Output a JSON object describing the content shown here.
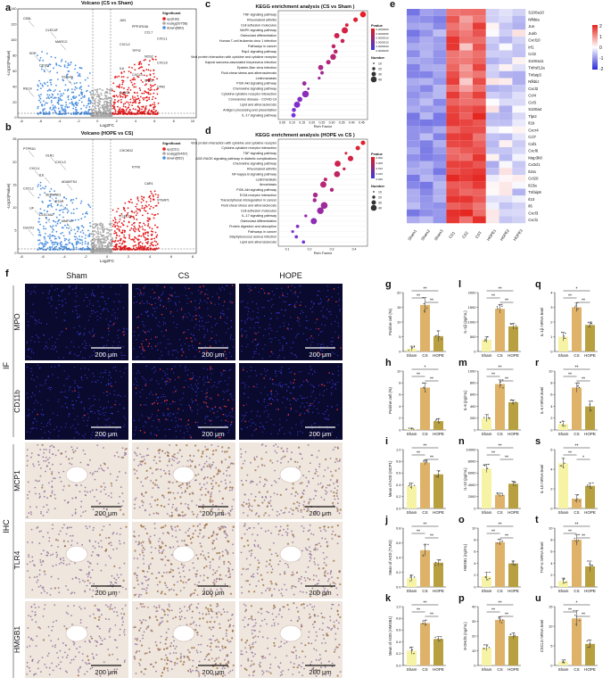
{
  "panel_letters": [
    "a",
    "b",
    "c",
    "d",
    "e",
    "f",
    "g",
    "h",
    "i",
    "j",
    "k",
    "l",
    "m",
    "n",
    "o",
    "p",
    "q",
    "r",
    "s",
    "t",
    "u"
  ],
  "volcano": [
    {
      "title": "Volcano (CS vs Sham)",
      "legend_title": "Significant",
      "legend": [
        "up(918)",
        "nosig(20756)",
        "down(580)"
      ],
      "xlabel": "Log2FC",
      "ylabel": "-Log10(Pvalue)",
      "xticks": [
        "-8",
        "-6",
        "-4",
        "-2",
        "0",
        "2",
        "4",
        "6",
        "8",
        "10"
      ],
      "yticks": [
        "0",
        "20",
        "40",
        "60",
        "80",
        "100",
        "120",
        "140"
      ],
      "gene_labels_left": [
        "CD5L",
        "CLEC4F",
        "MARCO",
        "KDR",
        "CD163",
        "VSIG4A",
        "RELN"
      ],
      "gene_labels_right": [
        "JUN",
        "PPP1R15A",
        "CCL7",
        "CXCL1",
        "CXCL2",
        "TFPI2",
        "NOS2",
        "CXCL6",
        "IL6",
        "CXCL3",
        "SAA2",
        "CPA2",
        "Prss33"
      ]
    },
    {
      "title": "Volcano (HOPE vs CS)",
      "legend_title": "Significant",
      "legend": [
        "up(231)",
        "nosig(20457)",
        "down(552)"
      ],
      "xlabel": "Log2FC",
      "ylabel": "-Log10(Pvalue)",
      "xticks": [
        "-8",
        "-6",
        "-4",
        "-2",
        "0",
        "2",
        "4",
        "6",
        "8"
      ],
      "yticks": [
        "0",
        "5",
        "10",
        "15",
        "20",
        "25"
      ],
      "gene_labels_left": [
        "PTPRA1",
        "OLR1",
        "CXCL3",
        "CXCL1",
        "IL6",
        "ADAMTS4",
        "CXCL2",
        "SERPINE1",
        "STAR",
        "LIF",
        "CLEC4A2",
        "MMP10",
        "DUOX2"
      ],
      "gene_labels_right": [
        "CHCHD2",
        "KTF8",
        "CAR1",
        "STEAP1",
        "CLEC2L"
      ]
    }
  ],
  "kegg": [
    {
      "title": "KEGG enrichment analysis (CS vs Sham )",
      "xlabel": "Rich Factor",
      "xticks": [
        "0.05",
        "0.10",
        "0.15",
        "0.20",
        "0.25",
        "0.30",
        "0.35",
        "0.40",
        "0.45"
      ],
      "pvalue_title": "Pvalue",
      "pvalue_ticks": [
        "0.0000000",
        "0.0000005",
        "0.0000010",
        "0.0000015",
        "0.0000020",
        "0.0000025"
      ],
      "number_title": "Number",
      "number_ticks": [
        "10",
        "20",
        "30",
        "40"
      ],
      "pathways": [
        "TNF signaling pathway",
        "Rheumatoid arthritis",
        "Cell adhesion molecules",
        "MAPK signaling pathway",
        "Osteoclast differentiation",
        "Human T-cell leukemia virus 1 infection",
        "Pathways in cancer",
        "Rap1 signaling pathway",
        "Viral protein interaction with cytokine and cytokine receptor",
        "Kaposi sarcoma-associated herpesvirus infection",
        "Epstein-Barr virus infection",
        "Fluid shear stress and atherosclerosis",
        "Leishmaniasis",
        "PI3K-Akt signaling pathway",
        "Chemokine signaling pathway",
        "Cytokine-cytokine receptor interaction",
        "Coronavirus disease - COVID-19",
        "Lipid and atherosclerosis",
        "Antigen processing and presentation",
        "IL-17 signaling pathway"
      ]
    },
    {
      "title": "KEGG enrichment analysis (HOPE vs CS )",
      "xlabel": "Rich Factor",
      "xticks": [
        "0.1",
        "0.2",
        "0.3",
        "0.4"
      ],
      "pvalue_title": "Pvalue",
      "pvalue_ticks": [
        "0.000",
        "0.005",
        "0.010",
        "0.015",
        "0.020"
      ],
      "number_title": "Number",
      "number_ticks": [
        "10",
        "20",
        "30",
        "40"
      ],
      "pathways": [
        "Viral protein interaction with cytokine and cytokine receptor",
        "Cytokine-cytokine receptor interaction",
        "TNF signaling pathway",
        "AGE-RAGE signaling pathway in diabetic complications",
        "Chemokine signaling pathway",
        "Rheumatoid arthritis",
        "NF-kappa B signaling pathway",
        "Leishmaniasis",
        "Amoebiasis",
        "PI3K-Akt signaling pathway",
        "ECM-receptor interaction",
        "Transcriptional misregulation in cancer",
        "Fluid shear stress and atherosclerosis",
        "Cell adhesion molecules",
        "IL-17 signaling pathway",
        "Osteoclast differentiation",
        "Protein digestion and absorption",
        "Pathways in cancer",
        "Staphylococcus aureus infection",
        "Lipid and atherosclerosis"
      ]
    }
  ],
  "heatmap": {
    "genes": [
      "S100a10",
      "Nfkbia",
      "Jun",
      "Junb",
      "Cxcl10",
      "Irf1",
      "Ccl2",
      "S100a11",
      "Tnfrsf12a",
      "Tnfaip3",
      "Nfkbiz",
      "Cxcl2",
      "Ccl4",
      "Ccl3",
      "S100a4",
      "Tlpi2",
      "Il1b",
      "Cxcr4",
      "Ccl7",
      "Caf1",
      "Cxcl6",
      "Map3k8",
      "Cx3cl1",
      "Il2ra",
      "Ccl20",
      "Il23a",
      "Tnfaip6",
      "Il10",
      "Il6",
      "Cxcl3",
      "Cxcl1"
    ],
    "samples": [
      "Sham1",
      "Sham2",
      "Sham3",
      "CS1",
      "CS2",
      "CS3",
      "HOPE1",
      "HOPE2",
      "HOPE3"
    ],
    "scale_ticks": [
      "2",
      "1",
      "0",
      "-1",
      "-2"
    ]
  },
  "micrograph": {
    "columns": [
      "Sham",
      "CS",
      "HOPE"
    ],
    "if_label": "IF",
    "ihc_label": "IHC",
    "rows": [
      "MPO",
      "CD11b",
      "MCP1",
      "TLR4",
      "HMGB1"
    ],
    "scale_bar": "200 μm"
  },
  "sig_mark": "**",
  "sig_mark_single": "*",
  "bar_charts": [
    {
      "letter": "g",
      "ylabel": "Positive cell (%)",
      "yticks": [
        "0",
        "5",
        "10",
        "15",
        "20"
      ],
      "categories": [
        "Sham",
        "CS",
        "HOPE"
      ],
      "values": [
        1.0,
        15.8,
        5.2
      ],
      "errors": [
        0.8,
        2.5,
        1.8
      ],
      "ymax": 20,
      "sig": [
        "**",
        "**",
        "**"
      ]
    },
    {
      "letter": "h",
      "ylabel": "Positive cell (%)",
      "yticks": [
        "0",
        "2",
        "4",
        "6",
        "8",
        "10"
      ],
      "categories": [
        "Sham",
        "CS",
        "HOPE"
      ],
      "values": [
        0.2,
        7.2,
        1.5
      ],
      "errors": [
        0.1,
        0.8,
        0.4
      ],
      "ymax": 10,
      "sig": [
        "**",
        "*",
        "**"
      ]
    },
    {
      "letter": "i",
      "ylabel": "Mean of AOD (MCP1)",
      "yticks": [
        "0.0",
        "0.2",
        "0.4",
        "0.6",
        "0.8",
        "1.0"
      ],
      "categories": [
        "Sham",
        "CS",
        "HOPE"
      ],
      "values": [
        0.38,
        0.78,
        0.58
      ],
      "errors": [
        0.05,
        0.04,
        0.06
      ],
      "ymax": 1.0,
      "sig": [
        "**",
        "**",
        "**"
      ]
    },
    {
      "letter": "j",
      "ylabel": "Mean of AOD (TLR4)",
      "yticks": [
        "0.0",
        "0.2",
        "0.4",
        "0.6",
        "0.8"
      ],
      "categories": [
        "Sham",
        "CS",
        "HOPE"
      ],
      "values": [
        0.12,
        0.5,
        0.33
      ],
      "errors": [
        0.04,
        0.08,
        0.04
      ],
      "ymax": 0.8,
      "sig": [
        "**",
        "**",
        "**"
      ]
    },
    {
      "letter": "k",
      "ylabel": "Mean of AOD (HMGB1)",
      "yticks": [
        "0.0",
        "0.2",
        "0.4",
        "0.6",
        "0.8",
        "1.0"
      ],
      "categories": [
        "Sham",
        "CS",
        "HOPE"
      ],
      "values": [
        0.25,
        0.72,
        0.45
      ],
      "errors": [
        0.06,
        0.05,
        0.04
      ],
      "ymax": 1.0,
      "sig": [
        "**",
        "**",
        "**"
      ]
    },
    {
      "letter": "l",
      "ylabel": "IL-1β (pg/mL)",
      "yticks": [
        "0",
        "500",
        "1000",
        "1500",
        "2000"
      ],
      "categories": [
        "Sham",
        "CS",
        "HOPE"
      ],
      "values": [
        400,
        1450,
        850
      ],
      "errors": [
        100,
        150,
        100
      ],
      "ymax": 2000,
      "sig": [
        "**",
        "**",
        "**"
      ]
    },
    {
      "letter": "m",
      "ylabel": "IL-6 (pg/mL)",
      "yticks": [
        "0",
        "200",
        "400",
        "600",
        "800",
        "1000"
      ],
      "categories": [
        "Sham",
        "CS",
        "HOPE"
      ],
      "values": [
        200,
        780,
        470
      ],
      "errors": [
        60,
        70,
        40
      ],
      "ymax": 1000,
      "sig": [
        "**",
        "**",
        "**"
      ]
    },
    {
      "letter": "n",
      "ylabel": "IL-10 (pg/mL)",
      "yticks": [
        "0",
        "2000",
        "4000",
        "6000",
        "8000",
        "10000"
      ],
      "categories": [
        "Sham",
        "CS",
        "HOPE"
      ],
      "values": [
        6800,
        2300,
        4200
      ],
      "errors": [
        700,
        300,
        400
      ],
      "ymax": 10000,
      "sig": [
        "**",
        "**",
        "**"
      ]
    },
    {
      "letter": "o",
      "ylabel": "HMGB1 (ng/mL)",
      "yticks": [
        "0",
        "2",
        "4",
        "6",
        "8",
        "10"
      ],
      "categories": [
        "Sham",
        "CS",
        "HOPE"
      ],
      "values": [
        1.8,
        7.6,
        4.0
      ],
      "errors": [
        0.7,
        0.5,
        0.4
      ],
      "ymax": 10,
      "sig": [
        "**",
        "**",
        "**"
      ]
    },
    {
      "letter": "p",
      "ylabel": "8-OHdG (ng/mL)",
      "yticks": [
        "0",
        "10",
        "20",
        "30",
        "40"
      ],
      "categories": [
        "Sham",
        "CS",
        "HOPE"
      ],
      "values": [
        12,
        31,
        20
      ],
      "errors": [
        2,
        2,
        2
      ],
      "ymax": 40,
      "sig": [
        "**",
        "**",
        "**"
      ]
    },
    {
      "letter": "q",
      "ylabel": "IL-1β mRNA level",
      "yticks": [
        "0",
        "1",
        "2",
        "3",
        "4"
      ],
      "categories": [
        "Sham",
        "CS",
        "HOPE"
      ],
      "values": [
        1.0,
        3.0,
        1.8
      ],
      "errors": [
        0.3,
        0.3,
        0.2
      ],
      "ymax": 4,
      "sig": [
        "**",
        "*",
        "**"
      ]
    },
    {
      "letter": "r",
      "ylabel": "IL-6 mRNA level",
      "yticks": [
        "0",
        "2",
        "4",
        "6",
        "8",
        "10"
      ],
      "categories": [
        "Sham",
        "CS",
        "HOPE"
      ],
      "values": [
        1.0,
        7.2,
        4.0
      ],
      "errors": [
        0.5,
        0.8,
        0.9
      ],
      "ymax": 10,
      "sig": [
        "**",
        "**",
        "**"
      ]
    },
    {
      "letter": "s",
      "ylabel": "IL-10 mRNA level",
      "yticks": [
        "0",
        "2",
        "4",
        "6"
      ],
      "categories": [
        "Sham",
        "CS",
        "HOPE"
      ],
      "values": [
        4.6,
        1.0,
        2.3
      ],
      "errors": [
        0.5,
        0.4,
        0.3
      ],
      "ymax": 6,
      "sig": [
        "**",
        "**",
        "*"
      ]
    },
    {
      "letter": "t",
      "ylabel": "TNF-α mRNA level",
      "yticks": [
        "0",
        "2",
        "4",
        "6",
        "8",
        "10"
      ],
      "categories": [
        "Sham",
        "CS",
        "HOPE"
      ],
      "values": [
        1.0,
        8.0,
        3.5
      ],
      "errors": [
        0.5,
        0.9,
        0.9
      ],
      "ymax": 10,
      "sig": [
        "**",
        "**",
        "**"
      ]
    },
    {
      "letter": "u",
      "ylabel": "CXCL3 mRNA level",
      "yticks": [
        "0",
        "5",
        "10",
        "15"
      ],
      "categories": [
        "Sham",
        "CS",
        "HOPE"
      ],
      "values": [
        1.0,
        12.0,
        5.5
      ],
      "errors": [
        0.4,
        2.0,
        1.0
      ],
      "ymax": 15,
      "sig": [
        "**",
        "*",
        "**"
      ]
    }
  ],
  "colors": {
    "up": "#e41a1c",
    "down": "#4a8fe0",
    "nosig": "#a8a8a8",
    "sham_bar": "#f7f3a5",
    "cs_bar": "#deb269",
    "hope_bar": "#b8a040",
    "heat_high": "#e4211c",
    "heat_low": "#2b2bd8"
  }
}
